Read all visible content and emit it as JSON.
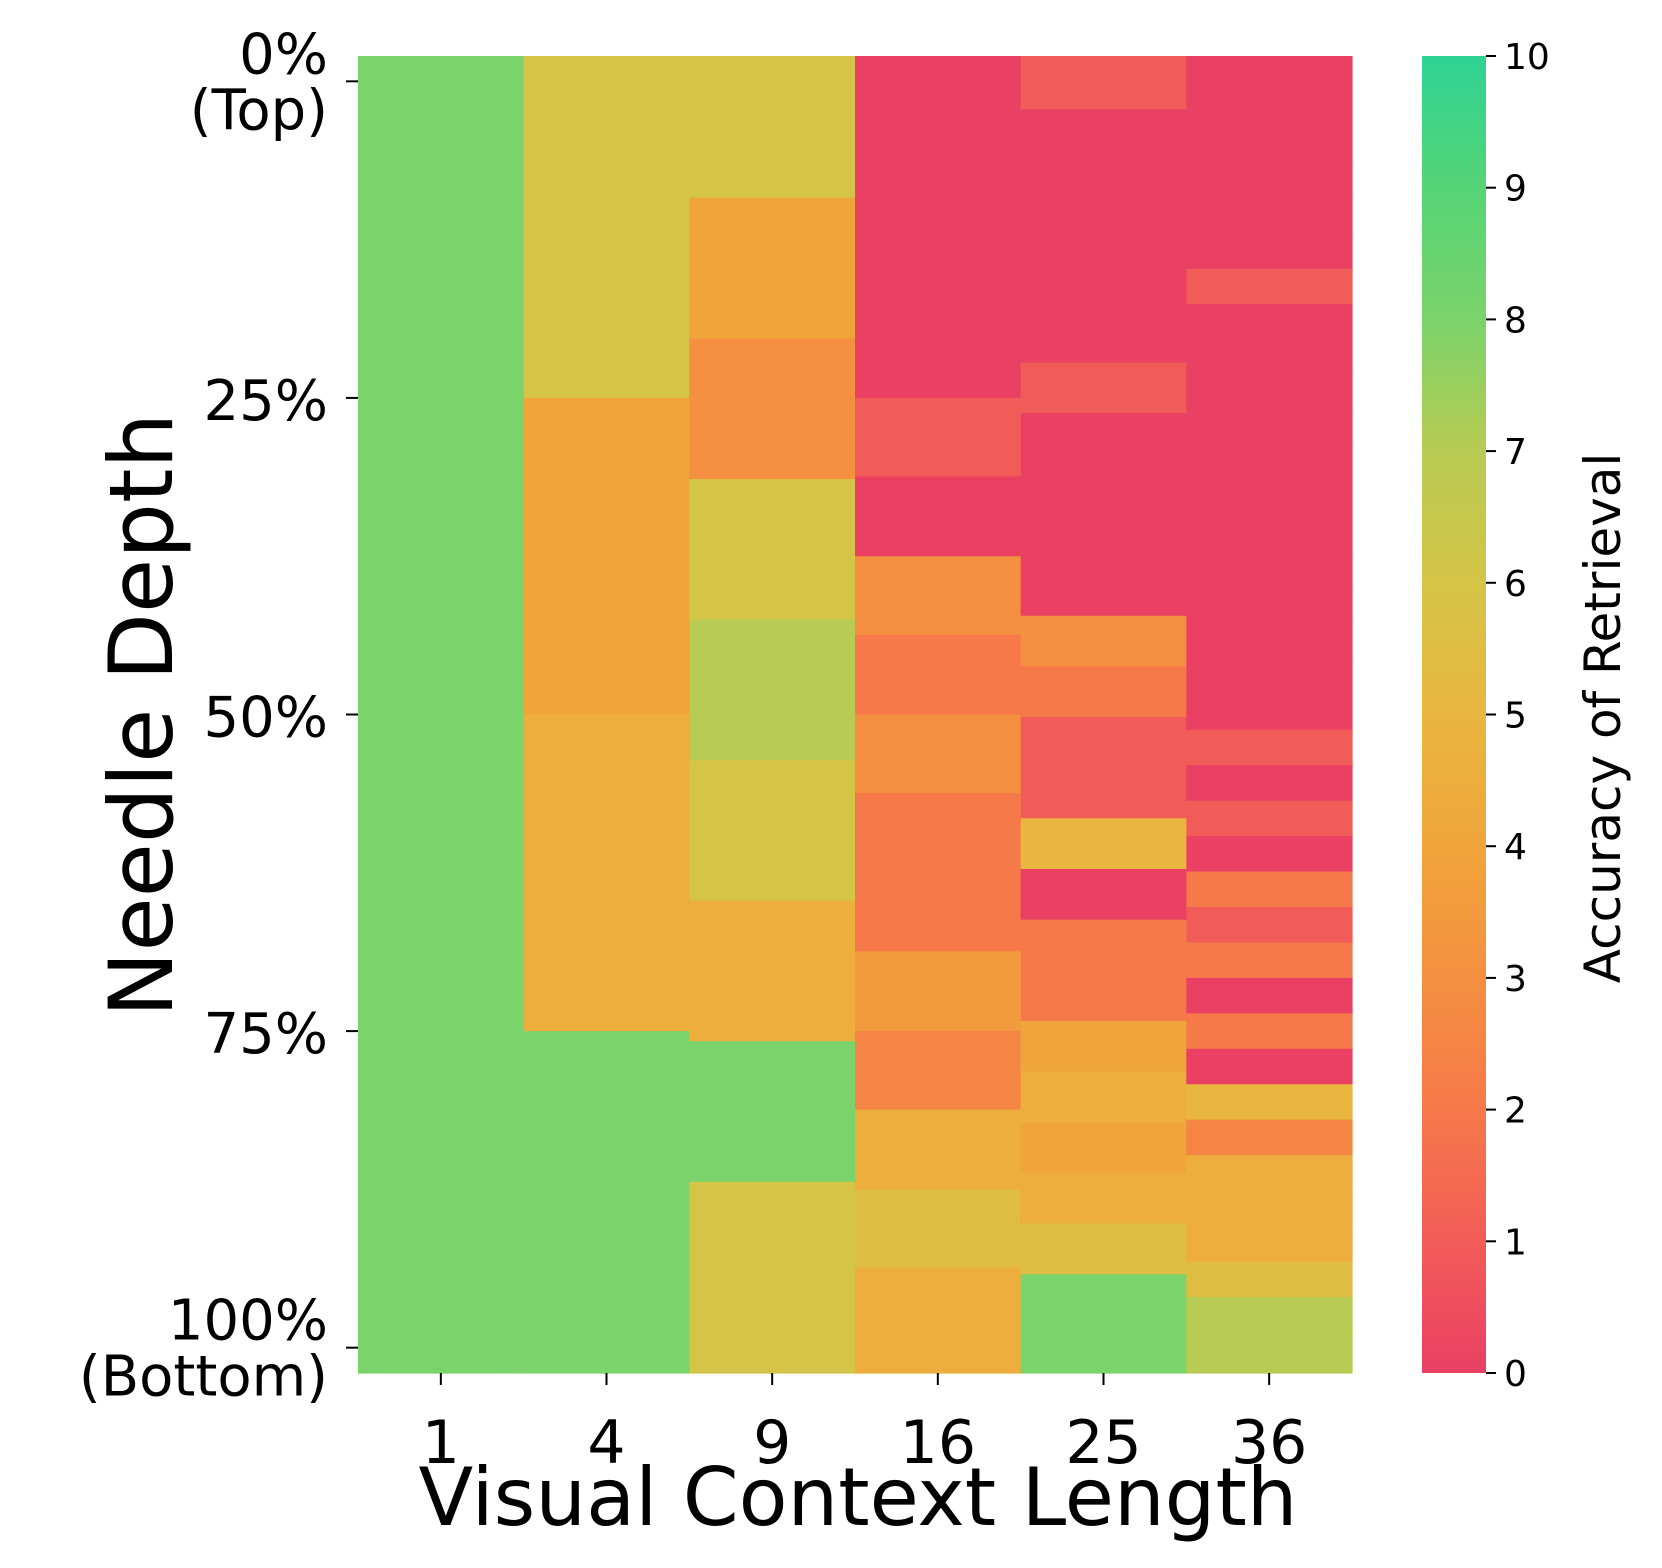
{
  "chart_data": {
    "type": "heatmap",
    "title": "",
    "xlabel": "Visual Context Length",
    "ylabel": "Needle Depth",
    "x_categories": [
      "1",
      "4",
      "9",
      "16",
      "25",
      "36"
    ],
    "y_tick_labels": [
      {
        "value": 0,
        "lines": [
          "0%",
          "(Top)"
        ]
      },
      {
        "value": 25,
        "lines": [
          "25%"
        ]
      },
      {
        "value": 50,
        "lines": [
          "50%"
        ]
      },
      {
        "value": 75,
        "lines": [
          "75%"
        ]
      },
      {
        "value": 100,
        "lines": [
          "100%",
          "(Bottom)"
        ]
      }
    ],
    "y_range": [
      -2,
      102
    ],
    "columns": [
      {
        "context": "1",
        "segments": [
          {
            "from": -2,
            "to": 102,
            "value": 8
          }
        ]
      },
      {
        "context": "4",
        "segments": [
          {
            "from": -2,
            "to": 25,
            "value": 6
          },
          {
            "from": 25,
            "to": 50,
            "value": 4
          },
          {
            "from": 50,
            "to": 75,
            "value": 4.5
          },
          {
            "from": 75,
            "to": 102,
            "value": 8
          }
        ]
      },
      {
        "context": "9",
        "segments": [
          {
            "from": -2,
            "to": 9.2,
            "value": 6
          },
          {
            "from": 9.2,
            "to": 20.3,
            "value": 4
          },
          {
            "from": 20.3,
            "to": 31.4,
            "value": 3
          },
          {
            "from": 31.4,
            "to": 42.5,
            "value": 6
          },
          {
            "from": 42.5,
            "to": 53.6,
            "value": 7
          },
          {
            "from": 53.6,
            "to": 64.7,
            "value": 6
          },
          {
            "from": 64.7,
            "to": 75.8,
            "value": 4.5
          },
          {
            "from": 75.8,
            "to": 86.9,
            "value": 8
          },
          {
            "from": 86.9,
            "to": 102,
            "value": 6
          }
        ]
      },
      {
        "context": "16",
        "segments": [
          {
            "from": -2,
            "to": 25,
            "value": 0
          },
          {
            "from": 25,
            "to": 31.2,
            "value": 1
          },
          {
            "from": 31.2,
            "to": 37.5,
            "value": 0
          },
          {
            "from": 37.5,
            "to": 43.7,
            "value": 3
          },
          {
            "from": 43.7,
            "to": 50,
            "value": 2
          },
          {
            "from": 50,
            "to": 56.2,
            "value": 3
          },
          {
            "from": 56.2,
            "to": 62.5,
            "value": 2
          },
          {
            "from": 62.5,
            "to": 68.7,
            "value": 2
          },
          {
            "from": 68.7,
            "to": 75,
            "value": 3.5
          },
          {
            "from": 75,
            "to": 81.2,
            "value": 2.5
          },
          {
            "from": 81.2,
            "to": 87.5,
            "value": 4.5
          },
          {
            "from": 87.5,
            "to": 93.7,
            "value": 5.5
          },
          {
            "from": 93.7,
            "to": 102,
            "value": 4.5
          }
        ]
      },
      {
        "context": "25",
        "segments": [
          {
            "from": -2,
            "to": 2.2,
            "value": 1
          },
          {
            "from": 2.2,
            "to": 6.2,
            "value": 0
          },
          {
            "from": 6.2,
            "to": 10.2,
            "value": 0
          },
          {
            "from": 10.2,
            "to": 14.2,
            "value": 0
          },
          {
            "from": 14.2,
            "to": 18.2,
            "value": 0
          },
          {
            "from": 18.2,
            "to": 22.2,
            "value": 0
          },
          {
            "from": 22.2,
            "to": 26.2,
            "value": 1
          },
          {
            "from": 26.2,
            "to": 30.2,
            "value": 0
          },
          {
            "from": 30.2,
            "to": 34.2,
            "value": 0
          },
          {
            "from": 34.2,
            "to": 38.2,
            "value": 0
          },
          {
            "from": 38.2,
            "to": 42.2,
            "value": 0
          },
          {
            "from": 42.2,
            "to": 46.2,
            "value": 3
          },
          {
            "from": 46.2,
            "to": 50.2,
            "value": 2
          },
          {
            "from": 50.2,
            "to": 54.2,
            "value": 1
          },
          {
            "from": 54.2,
            "to": 58.2,
            "value": 1
          },
          {
            "from": 58.2,
            "to": 62.2,
            "value": 5
          },
          {
            "from": 62.2,
            "to": 66.2,
            "value": 0
          },
          {
            "from": 66.2,
            "to": 70.2,
            "value": 2
          },
          {
            "from": 70.2,
            "to": 74.2,
            "value": 2
          },
          {
            "from": 74.2,
            "to": 78.2,
            "value": 4
          },
          {
            "from": 78.2,
            "to": 82.2,
            "value": 4.5
          },
          {
            "from": 82.2,
            "to": 86.2,
            "value": 4
          },
          {
            "from": 86.2,
            "to": 90.2,
            "value": 4.5
          },
          {
            "from": 90.2,
            "to": 94.2,
            "value": 5.5
          },
          {
            "from": 94.2,
            "to": 98.2,
            "value": 8
          },
          {
            "from": 98.2,
            "to": 102,
            "value": 8
          }
        ]
      },
      {
        "context": "36",
        "segments": [
          {
            "from": -2,
            "to": 3.6,
            "value": 0
          },
          {
            "from": 3.6,
            "to": 6.4,
            "value": 0
          },
          {
            "from": 6.4,
            "to": 9.2,
            "value": 0
          },
          {
            "from": 9.2,
            "to": 12.0,
            "value": 0
          },
          {
            "from": 12.0,
            "to": 14.8,
            "value": 0
          },
          {
            "from": 14.8,
            "to": 17.6,
            "value": 1
          },
          {
            "from": 17.6,
            "to": 20.4,
            "value": 0
          },
          {
            "from": 20.4,
            "to": 23.2,
            "value": 0
          },
          {
            "from": 23.2,
            "to": 26.0,
            "value": 0
          },
          {
            "from": 26.0,
            "to": 28.8,
            "value": 0
          },
          {
            "from": 28.8,
            "to": 31.6,
            "value": 0
          },
          {
            "from": 31.6,
            "to": 34.4,
            "value": 0
          },
          {
            "from": 34.4,
            "to": 37.2,
            "value": 0
          },
          {
            "from": 37.2,
            "to": 40.0,
            "value": 0
          },
          {
            "from": 40.0,
            "to": 42.8,
            "value": 0
          },
          {
            "from": 42.8,
            "to": 45.6,
            "value": 0
          },
          {
            "from": 45.6,
            "to": 48.4,
            "value": 0
          },
          {
            "from": 48.4,
            "to": 51.2,
            "value": 0
          },
          {
            "from": 51.2,
            "to": 54.0,
            "value": 1
          },
          {
            "from": 54.0,
            "to": 56.8,
            "value": 0
          },
          {
            "from": 56.8,
            "to": 59.6,
            "value": 1
          },
          {
            "from": 59.6,
            "to": 62.4,
            "value": 0
          },
          {
            "from": 62.4,
            "to": 65.2,
            "value": 2
          },
          {
            "from": 65.2,
            "to": 68.0,
            "value": 1
          },
          {
            "from": 68.0,
            "to": 70.8,
            "value": 2
          },
          {
            "from": 70.8,
            "to": 73.6,
            "value": 0
          },
          {
            "from": 73.6,
            "to": 76.4,
            "value": 2
          },
          {
            "from": 76.4,
            "to": 79.2,
            "value": 0
          },
          {
            "from": 79.2,
            "to": 82.0,
            "value": 5
          },
          {
            "from": 82.0,
            "to": 84.8,
            "value": 2.5
          },
          {
            "from": 84.8,
            "to": 87.6,
            "value": 4.5
          },
          {
            "from": 87.6,
            "to": 90.4,
            "value": 4.5
          },
          {
            "from": 90.4,
            "to": 93.2,
            "value": 4.5
          },
          {
            "from": 93.2,
            "to": 96.0,
            "value": 5.5
          },
          {
            "from": 96.0,
            "to": 98.8,
            "value": 7
          },
          {
            "from": 98.8,
            "to": 102,
            "value": 7
          }
        ]
      }
    ],
    "colorbar": {
      "label": "Accuracy of Retrieval",
      "range": [
        0,
        10
      ],
      "ticks": [
        "0",
        "1",
        "2",
        "3",
        "4",
        "5",
        "6",
        "7",
        "8",
        "9",
        "10"
      ],
      "colors": [
        "#e94064",
        "#f25c58",
        "#f6794a",
        "#f49040",
        "#f0a53b",
        "#e9b63f",
        "#d4c447",
        "#b8cb52",
        "#7bd36b",
        "#55d476",
        "#2fd394"
      ]
    }
  }
}
